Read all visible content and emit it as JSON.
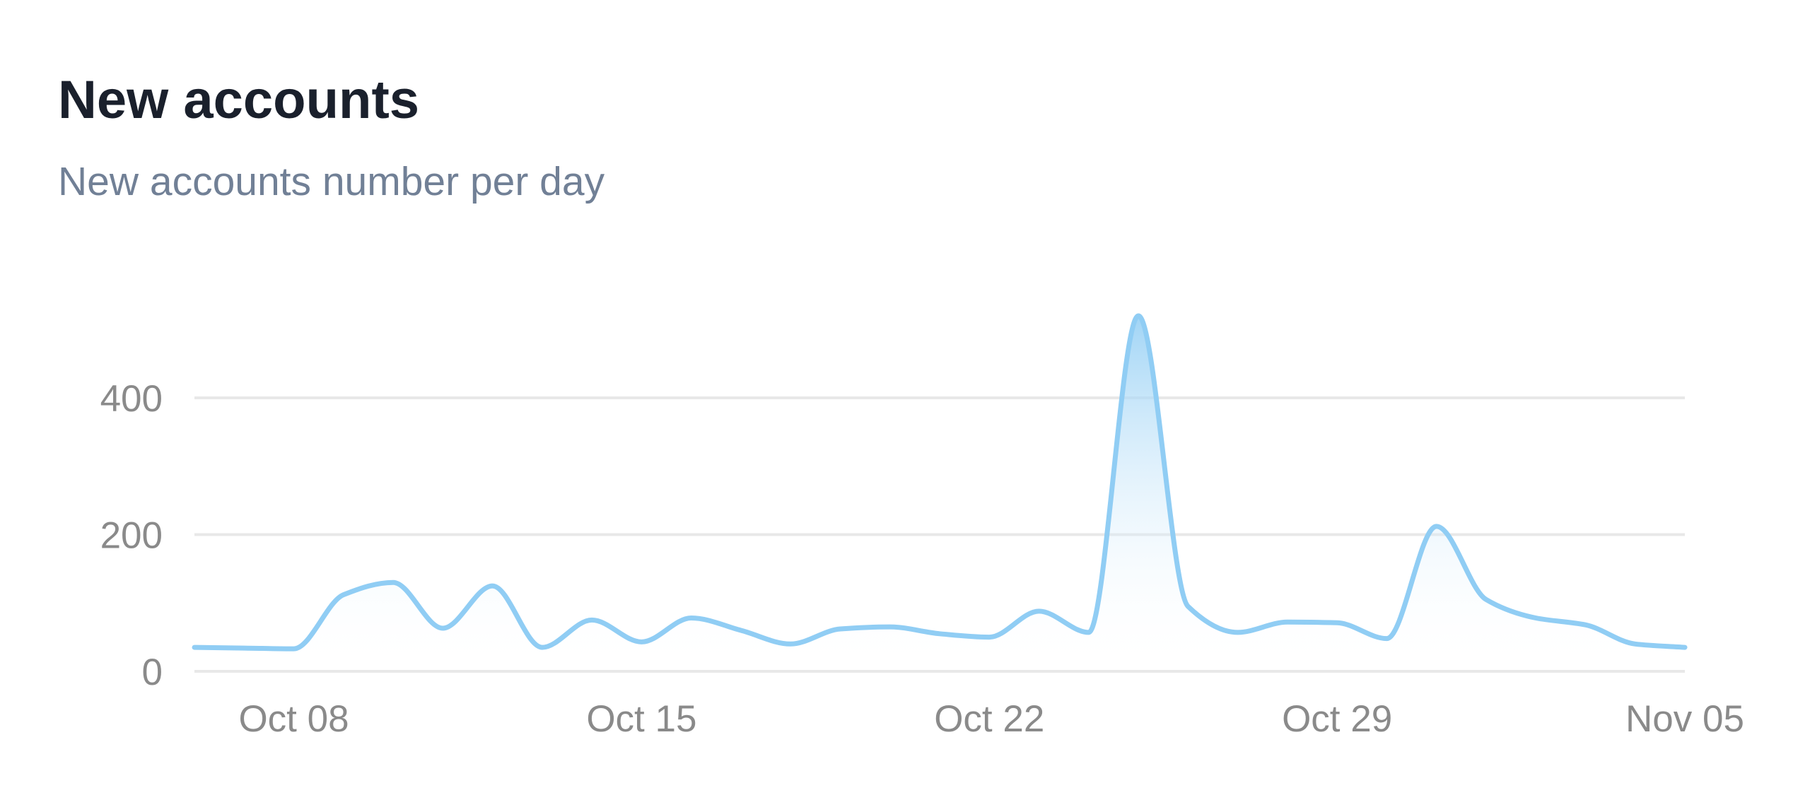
{
  "card": {
    "title": "New accounts",
    "subtitle": "New accounts number per day"
  },
  "colors": {
    "title": "#1a202c",
    "subtitle": "#718096",
    "line": "#90cdf4",
    "area_top": "#90cdf4",
    "grid": "#e8e8e8",
    "tick": "#8a8a8a"
  },
  "chart_data": {
    "type": "area",
    "title": "New accounts",
    "subtitle": "New accounts number per day",
    "xlabel": "",
    "ylabel": "",
    "ylim": [
      0,
      500
    ],
    "yticks": [
      0,
      200,
      400
    ],
    "ytick_labels": [
      "0",
      "200",
      "400"
    ],
    "xticks": [
      "2024-10-08",
      "2024-10-15",
      "2024-10-22",
      "2024-10-29",
      "2024-11-05"
    ],
    "xtick_labels": [
      "Oct 08",
      "Oct 15",
      "Oct 22",
      "Oct 29",
      "Nov 05"
    ],
    "grid": true,
    "legend": "none",
    "x": [
      "2024-10-06",
      "2024-10-07",
      "2024-10-08",
      "2024-10-09",
      "2024-10-10",
      "2024-10-11",
      "2024-10-12",
      "2024-10-13",
      "2024-10-14",
      "2024-10-15",
      "2024-10-16",
      "2024-10-17",
      "2024-10-18",
      "2024-10-19",
      "2024-10-20",
      "2024-10-21",
      "2024-10-22",
      "2024-10-23",
      "2024-10-24",
      "2024-10-25",
      "2024-10-26",
      "2024-10-27",
      "2024-10-28",
      "2024-10-29",
      "2024-10-30",
      "2024-10-31",
      "2024-11-01",
      "2024-11-02",
      "2024-11-03",
      "2024-11-04",
      "2024-11-05"
    ],
    "values": [
      35,
      34,
      33,
      112,
      130,
      63,
      125,
      35,
      75,
      43,
      78,
      60,
      40,
      62,
      65,
      55,
      50,
      88,
      57,
      520,
      95,
      57,
      72,
      71,
      48,
      212,
      105,
      78,
      68,
      40,
      35
    ]
  }
}
